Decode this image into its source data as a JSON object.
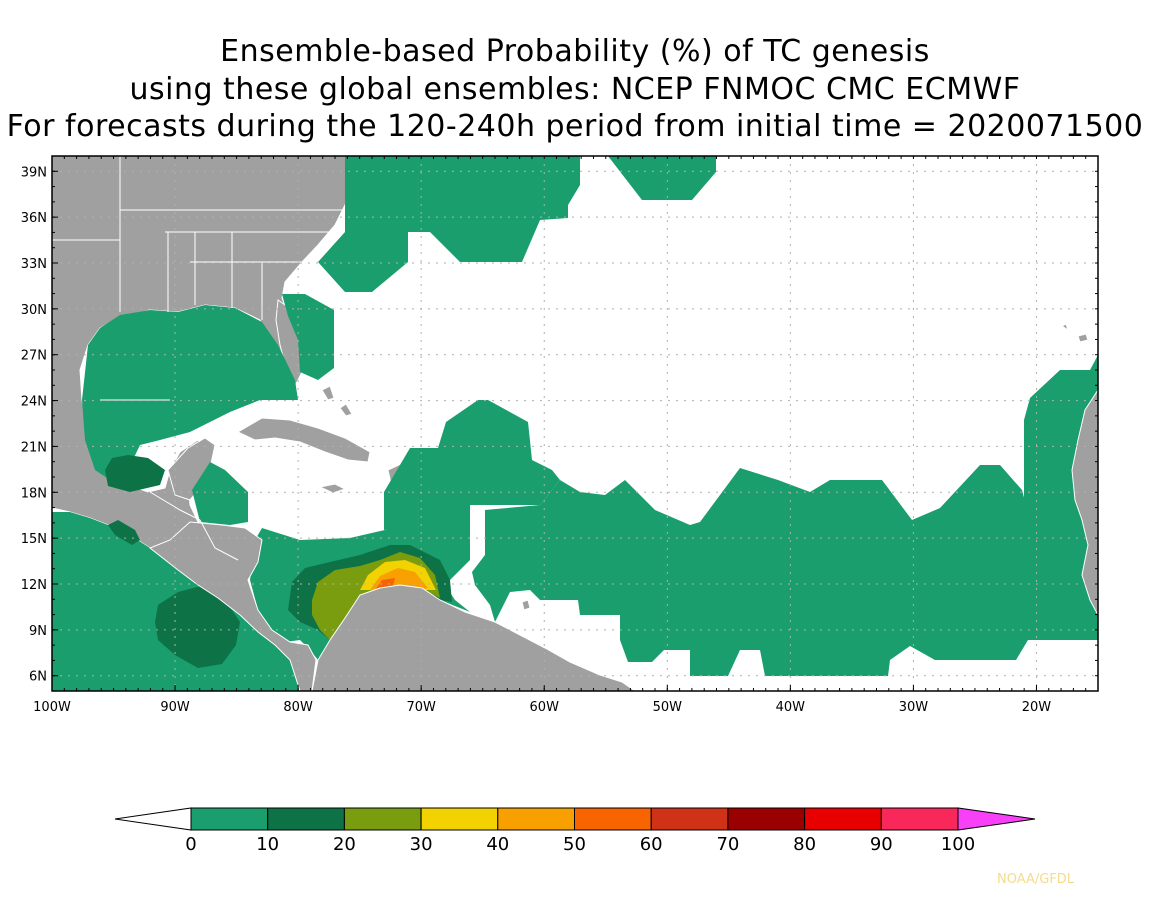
{
  "title": {
    "line1": "Ensemble-based Probability (%) of TC genesis",
    "line2": "using these global ensembles:   NCEP FNMOC CMC ECMWF",
    "line3": "For forecasts during the 120-240h period from initial time = 2020071500"
  },
  "map": {
    "lon_range": [
      -100,
      -15
    ],
    "lat_range": [
      5,
      40
    ],
    "lat_labels": [
      "39N",
      "36N",
      "33N",
      "30N",
      "27N",
      "24N",
      "21N",
      "18N",
      "15N",
      "12N",
      "9N",
      "6N"
    ],
    "lon_labels": [
      "100W",
      "90W",
      "80W",
      "70W",
      "60W",
      "50W",
      "40W",
      "30W",
      "20W"
    ],
    "land_color": "#a0a0a0",
    "grid": "dotted"
  },
  "legend": {
    "colors": [
      "#1a9e6e",
      "#0e7247",
      "#7a9c0f",
      "#f2d200",
      "#f8a000",
      "#f86400",
      "#d03218",
      "#9a0000",
      "#e80000",
      "#f8285a",
      "#f840f8"
    ],
    "ticks": [
      "0",
      "10",
      "20",
      "30",
      "40",
      "50",
      "60",
      "70",
      "80",
      "90",
      "100"
    ]
  },
  "credit": "NOAA/GFDL"
}
